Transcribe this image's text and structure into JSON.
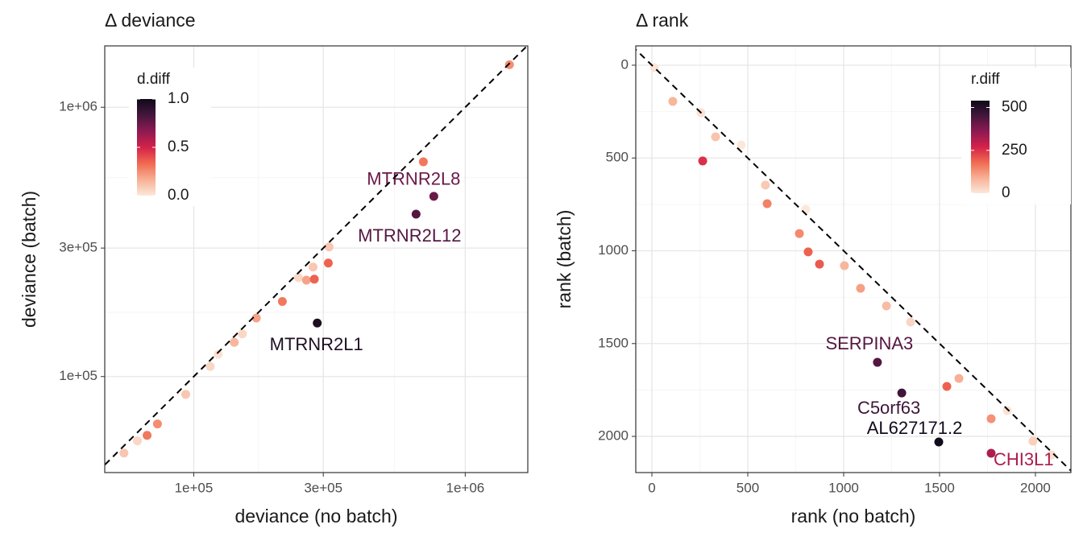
{
  "chart_data": [
    {
      "type": "scatter",
      "title": "Δ deviance",
      "xlabel": "deviance (no batch)",
      "ylabel": "deviance (batch)",
      "xlog": true,
      "ylog": true,
      "grid": true,
      "diagonal": true,
      "xlim": [
        47000,
        1700000
      ],
      "ylim": [
        44000,
        1690000
      ],
      "xticks": [
        {
          "value": 100000,
          "label": "1e+05"
        },
        {
          "value": 300000,
          "label": "3e+05"
        },
        {
          "value": 1000000,
          "label": "1e+06"
        }
      ],
      "yticks": [
        {
          "value": 100000,
          "label": "1e+05"
        },
        {
          "value": 300000,
          "label": "3e+05"
        },
        {
          "value": 1000000,
          "label": "1e+06"
        }
      ],
      "legend_title": "d.diff",
      "color_lim": [
        0,
        1
      ],
      "color_ticks": [
        {
          "value": 0,
          "label": "0.0"
        },
        {
          "value": 0.5,
          "label": "0.5"
        },
        {
          "value": 1,
          "label": "1.0"
        }
      ],
      "colormap": [
        "#fce8da",
        "#f7b095",
        "#f06a4f",
        "#d4214a",
        "#8e1a52",
        "#45163d",
        "#0d0a18"
      ],
      "x": [
        55300,
        62000,
        67300,
        73500,
        93400,
        115000,
        123000,
        141000,
        151000,
        170000,
        212000,
        243000,
        260000,
        275000,
        278000,
        313000,
        315000,
        285000,
        659000,
        766000,
        701000,
        1455000
      ],
      "y": [
        52000,
        57700,
        60500,
        66700,
        85900,
        109000,
        121000,
        134000,
        144000,
        165000,
        190000,
        233000,
        228000,
        255000,
        230000,
        264000,
        303000,
        158000,
        401000,
        467000,
        627000,
        1439000
      ],
      "color_values": [
        0.1,
        0.05,
        0.3,
        0.25,
        0.1,
        0.05,
        0.02,
        0.15,
        0.05,
        0.2,
        0.3,
        0.05,
        0.2,
        0.1,
        0.35,
        0.35,
        0.1,
        0.95,
        0.8,
        0.75,
        0.3,
        0.25
      ],
      "point_labels": [
        null,
        null,
        null,
        null,
        null,
        null,
        null,
        null,
        null,
        null,
        null,
        null,
        null,
        null,
        null,
        null,
        null,
        "MTRNR2L1",
        "MTRNR2L12",
        "MTRNR2L8",
        null,
        null
      ]
    },
    {
      "type": "scatter",
      "title": "Δ rank",
      "xlabel": "rank (no batch)",
      "ylabel": "rank (batch)",
      "xlog": false,
      "ylog": false,
      "grid": true,
      "diagonal": true,
      "xlim": [
        -84,
        2185
      ],
      "ylim": [
        2195,
        -104
      ],
      "xticks": [
        0,
        500,
        1000,
        1500,
        2000
      ],
      "yticks": [
        0,
        500,
        1000,
        1500,
        2000
      ],
      "legend_title": "r.diff",
      "color_lim": [
        0,
        540
      ],
      "color_ticks": [
        0,
        250,
        500
      ],
      "colormap": [
        "#fce8da",
        "#f7b095",
        "#f06a4f",
        "#d4214a",
        "#8e1a52",
        "#45163d",
        "#0d0a18"
      ],
      "x": [
        13,
        109,
        256,
        332,
        265,
        466,
        592,
        601,
        769,
        803,
        815,
        874,
        1004,
        1088,
        1223,
        1349,
        1538,
        1601,
        1769,
        1853,
        1987,
        2084,
        1176,
        1303,
        1496,
        1769
      ],
      "y": [
        13,
        195,
        256,
        386,
        516,
        430,
        646,
        746,
        907,
        777,
        1006,
        1072,
        1080,
        1202,
        1297,
        1384,
        1731,
        1688,
        1905,
        1861,
        2026,
        2100,
        1601,
        1766,
        2030,
        2091
      ],
      "color_values": [
        5,
        80,
        10,
        60,
        250,
        0,
        50,
        150,
        140,
        0,
        190,
        200,
        80,
        110,
        70,
        30,
        190,
        90,
        130,
        10,
        40,
        15,
        430,
        460,
        530,
        320
      ],
      "point_labels": [
        null,
        null,
        null,
        null,
        null,
        null,
        null,
        null,
        null,
        null,
        null,
        null,
        null,
        null,
        null,
        null,
        null,
        null,
        null,
        null,
        null,
        null,
        "SERPINA3",
        "C5orf63",
        "AL627171.2",
        "CHI3L1"
      ]
    }
  ]
}
